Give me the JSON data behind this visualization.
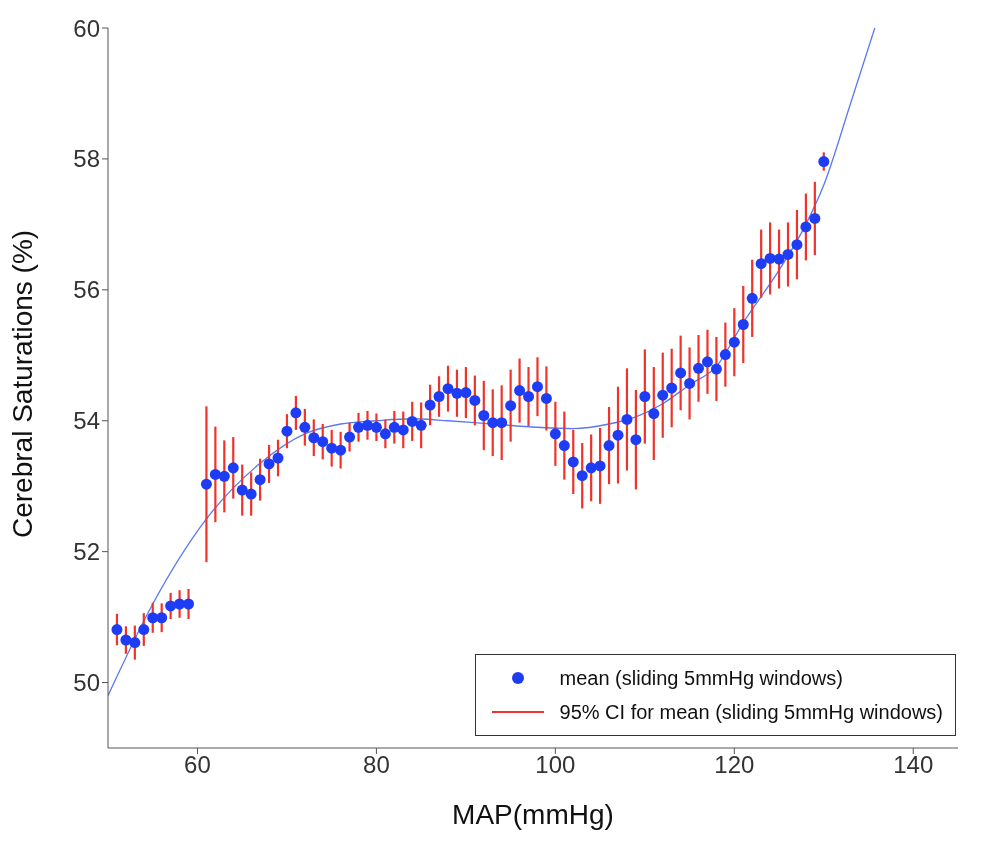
{
  "chart_data": {
    "type": "scatter",
    "xlabel": "MAP(mmHg)",
    "ylabel": "Cerebral Saturations (%)",
    "xlim": [
      50,
      145
    ],
    "xticks": [
      60,
      80,
      100,
      120,
      140
    ],
    "ylim": [
      49,
      60
    ],
    "yticks": [
      50,
      52,
      54,
      56,
      58,
      60
    ],
    "legend": "bottom right",
    "annotations": [
      "95% CI for mean (sliding 5mmHg windows)"
    ],
    "series": [
      {
        "name": "mean (sliding 5mmHg windows)",
        "marker": "circle",
        "color": "#1f3cf5",
        "x": [
          51,
          52,
          53,
          54,
          55,
          56,
          57,
          58,
          59,
          61,
          62,
          63,
          64,
          65,
          66,
          67,
          68,
          69,
          70,
          71,
          72,
          73,
          74,
          75,
          76,
          77,
          78,
          79,
          80,
          81,
          82,
          83,
          84,
          85,
          86,
          87,
          88,
          89,
          90,
          91,
          92,
          93,
          94,
          95,
          96,
          97,
          98,
          99,
          100,
          101,
          102,
          103,
          104,
          105,
          106,
          107,
          108,
          109,
          110,
          111,
          112,
          113,
          114,
          115,
          116,
          117,
          118,
          119,
          120,
          121,
          122,
          123,
          124,
          125,
          126,
          127,
          128,
          129,
          130
        ],
        "values": [
          50.81,
          50.65,
          50.61,
          50.81,
          50.99,
          50.99,
          51.17,
          51.2,
          51.2,
          53.03,
          53.18,
          53.15,
          53.28,
          52.94,
          52.88,
          53.1,
          53.34,
          53.43,
          53.84,
          54.12,
          53.9,
          53.74,
          53.68,
          53.58,
          53.55,
          53.75,
          53.9,
          53.93,
          53.9,
          53.8,
          53.9,
          53.86,
          53.99,
          53.93,
          54.24,
          54.37,
          54.49,
          54.42,
          54.43,
          54.31,
          54.08,
          53.97,
          53.97,
          54.23,
          54.46,
          54.37,
          54.52,
          54.34,
          53.8,
          53.62,
          53.37,
          53.16,
          53.28,
          53.31,
          53.62,
          53.78,
          54.02,
          53.71,
          54.37,
          54.11,
          54.39,
          54.5,
          54.73,
          54.57,
          54.8,
          54.9,
          54.79,
          55.01,
          55.2,
          55.47,
          55.87,
          56.4,
          56.48,
          56.47,
          56.54,
          56.69,
          56.96,
          57.09,
          57.96
        ],
        "errors": [
          [
            50.57,
            51.05
          ],
          [
            50.44,
            50.86
          ],
          [
            50.35,
            50.87
          ],
          [
            50.56,
            51.06
          ],
          [
            50.76,
            51.22
          ],
          [
            50.77,
            51.21
          ],
          [
            50.97,
            51.37
          ],
          [
            50.99,
            51.41
          ],
          [
            50.97,
            51.43
          ],
          [
            51.84,
            54.22
          ],
          [
            52.45,
            53.91
          ],
          [
            52.6,
            53.7
          ],
          [
            52.81,
            53.75
          ],
          [
            52.55,
            53.33
          ],
          [
            52.55,
            53.21
          ],
          [
            52.78,
            53.42
          ],
          [
            53.05,
            53.63
          ],
          [
            53.15,
            53.71
          ],
          [
            53.58,
            54.1
          ],
          [
            53.86,
            54.38
          ],
          [
            53.62,
            54.18
          ],
          [
            53.46,
            54.02
          ],
          [
            53.41,
            53.95
          ],
          [
            53.3,
            53.86
          ],
          [
            53.27,
            53.83
          ],
          [
            53.53,
            53.97
          ],
          [
            53.68,
            54.12
          ],
          [
            53.71,
            54.15
          ],
          [
            53.69,
            54.11
          ],
          [
            53.58,
            54.02
          ],
          [
            53.65,
            54.15
          ],
          [
            53.58,
            54.14
          ],
          [
            53.69,
            54.29
          ],
          [
            53.58,
            54.28
          ],
          [
            53.93,
            54.55
          ],
          [
            54.06,
            54.68
          ],
          [
            54.14,
            54.84
          ],
          [
            54.06,
            54.78
          ],
          [
            54.04,
            54.82
          ],
          [
            53.93,
            54.69
          ],
          [
            53.55,
            54.61
          ],
          [
            53.46,
            54.48
          ],
          [
            53.4,
            54.54
          ],
          [
            53.68,
            54.78
          ],
          [
            53.97,
            54.95
          ],
          [
            53.92,
            54.82
          ],
          [
            54.07,
            54.97
          ],
          [
            53.85,
            54.83
          ],
          [
            53.31,
            54.29
          ],
          [
            53.1,
            54.14
          ],
          [
            52.88,
            53.86
          ],
          [
            52.66,
            53.66
          ],
          [
            52.77,
            53.79
          ],
          [
            52.73,
            53.89
          ],
          [
            53.03,
            54.21
          ],
          [
            53.04,
            54.52
          ],
          [
            53.24,
            54.8
          ],
          [
            52.95,
            54.47
          ],
          [
            53.65,
            55.09
          ],
          [
            53.4,
            54.82
          ],
          [
            53.74,
            55.04
          ],
          [
            53.9,
            55.1
          ],
          [
            54.16,
            55.3
          ],
          [
            54.02,
            55.12
          ],
          [
            54.29,
            55.31
          ],
          [
            54.41,
            55.39
          ],
          [
            54.3,
            55.28
          ],
          [
            54.52,
            55.5
          ],
          [
            54.68,
            55.72
          ],
          [
            54.88,
            56.06
          ],
          [
            55.28,
            56.46
          ],
          [
            55.88,
            56.92
          ],
          [
            55.93,
            57.03
          ],
          [
            56.02,
            56.92
          ],
          [
            56.05,
            57.03
          ],
          [
            56.16,
            57.22
          ],
          [
            56.45,
            57.47
          ],
          [
            56.53,
            57.65
          ],
          [
            57.82,
            58.1
          ]
        ]
      },
      {
        "type": "line",
        "marker": "none",
        "line_style": "solid",
        "color": "#5a78f0",
        "x": [
          50,
          55,
          61,
          67,
          72,
          76,
          80,
          84,
          88,
          92,
          98,
          102,
          106,
          109,
          112,
          115,
          118,
          121,
          125,
          128,
          130,
          133,
          135.7
        ],
        "values": [
          49.8,
          51.2,
          52.5,
          53.35,
          53.8,
          53.95,
          54.0,
          54.03,
          54.0,
          53.96,
          53.9,
          53.88,
          53.95,
          54.06,
          54.26,
          54.55,
          54.83,
          55.5,
          56.3,
          57.0,
          57.6,
          58.85,
          60.0
        ]
      }
    ]
  }
}
